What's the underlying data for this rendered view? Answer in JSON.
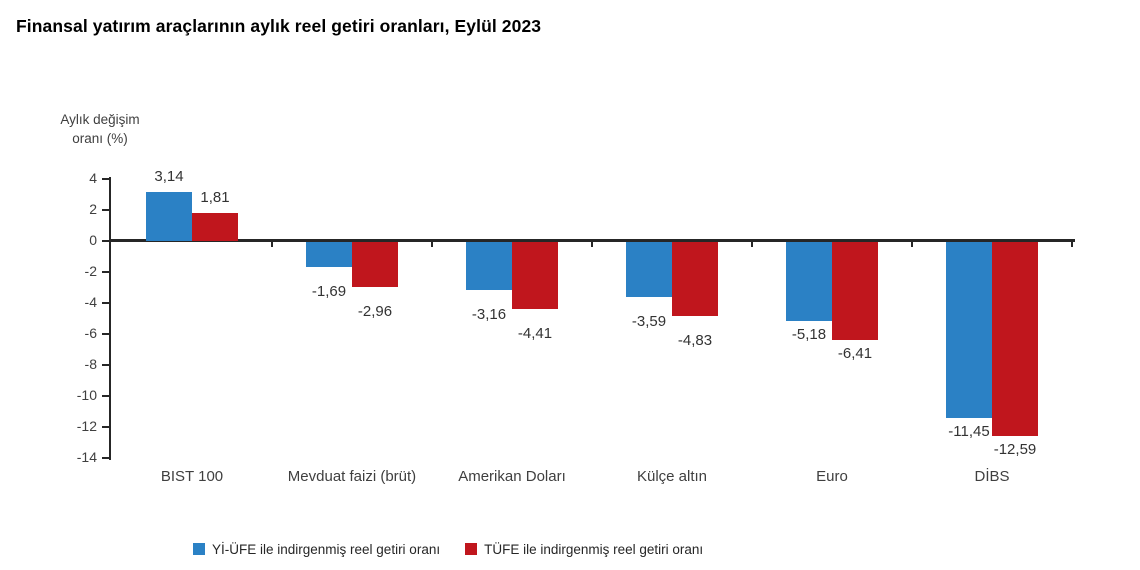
{
  "title": "Finansal yatırım araçlarının aylık reel getiri oranları, Eylül 2023",
  "y_axis_title": {
    "line1": "Aylık değişim",
    "line2": "oranı (%)"
  },
  "chart_data": {
    "type": "bar",
    "title": "Finansal yatırım araçlarının aylık reel getiri oranları, Eylül 2023",
    "xlabel": "",
    "ylabel": "Aylık değişim oranı (%)",
    "ylim": [
      -14,
      4
    ],
    "ytick_step": 2,
    "yticks": [
      4,
      2,
      0,
      -2,
      -4,
      -6,
      -8,
      -10,
      -12,
      -14
    ],
    "grid": false,
    "legend_position": "bottom",
    "categories": [
      "BIST 100",
      "Mevduat faizi (brüt)",
      "Amerikan Doları",
      "Külçe altın",
      "Euro",
      "DİBS"
    ],
    "series": [
      {
        "name": "Yİ-ÜFE ile indirgenmiş reel getiri oranı",
        "color": "#2b81c5",
        "values": [
          3.14,
          -1.69,
          -3.16,
          -3.59,
          -5.18,
          -11.45
        ],
        "value_labels": [
          "3,14",
          "-1,69",
          "-3,16",
          "-3,59",
          "-5,18",
          "-11,45"
        ]
      },
      {
        "name": "TÜFE ile indirgenmiş reel getiri oranı",
        "color": "#c0161d",
        "values": [
          1.81,
          -2.96,
          -4.41,
          -4.83,
          -6.41,
          -12.59
        ],
        "value_labels": [
          "1,81",
          "-2,96",
          "-4,41",
          "-4,83",
          "-6,41",
          "-12,59"
        ]
      }
    ]
  }
}
